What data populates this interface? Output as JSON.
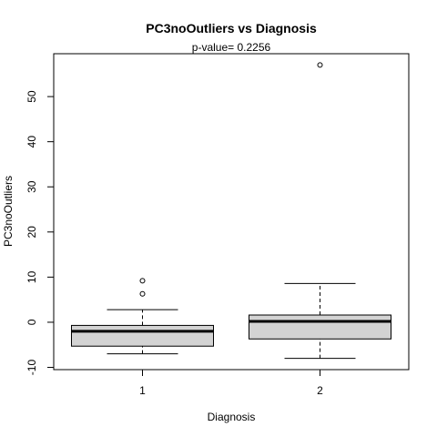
{
  "chart_data": {
    "type": "boxplot",
    "title": "PC3noOutliers  vs  Diagnosis",
    "subtitle": "p-value= 0.2256",
    "xlabel": "Diagnosis",
    "ylabel": "PC3noOutliers",
    "ylim": [
      -10.5,
      59.5
    ],
    "yticks": [
      -10,
      0,
      10,
      20,
      30,
      40,
      50
    ],
    "categories": [
      "1",
      "2"
    ],
    "box_fill": "#d3d3d3",
    "boxes": [
      {
        "category": "1",
        "whisker_low": -7.0,
        "q1": -5.3,
        "median": -2.0,
        "q3": -0.7,
        "whisker_high": 2.8,
        "outliers": [
          6.3,
          9.2
        ]
      },
      {
        "category": "2",
        "whisker_low": -8.0,
        "q1": -3.7,
        "median": 0.2,
        "q3": 1.6,
        "whisker_high": 8.6,
        "outliers": [
          57.0
        ]
      }
    ],
    "grid": false,
    "legend": "none"
  }
}
